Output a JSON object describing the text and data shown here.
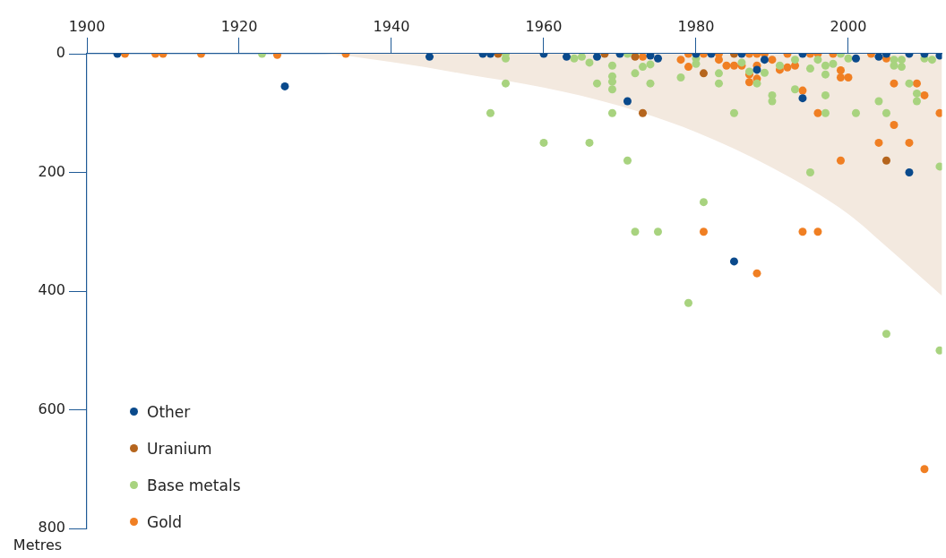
{
  "chart_data": {
    "type": "scatter",
    "ylabel": "Metres",
    "xlim": [
      1900,
      2012.3
    ],
    "ylim": [
      800,
      0
    ],
    "xticks": [
      1900,
      1920,
      1940,
      1960,
      1980,
      2000
    ],
    "yticks": [
      0,
      200,
      400,
      600,
      800
    ],
    "grid": false,
    "legend": "bottom left",
    "marker": "circle",
    "series": [
      {
        "type": "area",
        "marker": "none",
        "color": "#f3e9df",
        "x": [
          1900,
          1930,
          1940,
          1950,
          1960,
          1970,
          1980,
          1990,
          2000,
          2005,
          2012.3
        ],
        "values": [
          0,
          0,
          14,
          35,
          57,
          88,
          132,
          192,
          270,
          325,
          408
        ]
      },
      {
        "name": "Other",
        "color": "#0a4a8c",
        "x": [
          1904,
          1945,
          1926,
          1952,
          1953,
          1960,
          1963,
          1967,
          1970,
          1971,
          1974,
          1975,
          1980,
          1982,
          1986,
          1988,
          1989,
          1994,
          1994,
          2001,
          2004,
          2005,
          2008,
          2008,
          2010,
          2012,
          1985
        ],
        "values": [
          0,
          5,
          55,
          0,
          0,
          0,
          5,
          5,
          0,
          80,
          3,
          8,
          0,
          0,
          0,
          27,
          10,
          0,
          75,
          8,
          5,
          0,
          0,
          200,
          0,
          3,
          350
        ]
      },
      {
        "name": "Uranium",
        "color": "#b5651d",
        "x": [
          1954,
          1968,
          1972,
          1973,
          1981,
          1985,
          2005
        ],
        "values": [
          0,
          0,
          5,
          100,
          33,
          0,
          180
        ]
      },
      {
        "name": "Base metals",
        "color": "#a8d37f",
        "x": [
          1923,
          1955,
          1955,
          1955,
          1953,
          1960,
          1964,
          1965,
          1966,
          1966,
          1967,
          1969,
          1969,
          1969,
          1969,
          1969,
          1971,
          1972,
          1972,
          1973,
          1974,
          1974,
          1971,
          1972,
          1975,
          1978,
          1980,
          1980,
          1983,
          1983,
          1979,
          1981,
          1985,
          1986,
          1987,
          1988,
          1989,
          1990,
          1990,
          1991,
          1993,
          1993,
          1995,
          1995,
          1996,
          1997,
          1997,
          1997,
          1997,
          1998,
          1999,
          2000,
          2001,
          2004,
          2005,
          2005,
          2006,
          2006,
          2007,
          2007,
          2008,
          2009,
          2009,
          2010,
          2011,
          2012,
          2012
        ],
        "values": [
          0,
          0,
          8,
          50,
          100,
          150,
          8,
          5,
          15,
          150,
          50,
          20,
          38,
          47,
          60,
          100,
          0,
          0,
          33,
          22,
          18,
          50,
          180,
          300,
          300,
          40,
          8,
          17,
          33,
          50,
          420,
          250,
          100,
          15,
          30,
          50,
          32,
          70,
          80,
          20,
          60,
          10,
          200,
          25,
          10,
          20,
          70,
          100,
          35,
          17,
          0,
          8,
          100,
          80,
          100,
          472,
          20,
          10,
          10,
          22,
          50,
          67,
          80,
          8,
          10,
          190,
          500
        ]
      },
      {
        "name": "Gold",
        "color": "#f07f23",
        "x": [
          1905,
          1909,
          1910,
          1915,
          1925,
          1934,
          1973,
          1978,
          1979,
          1979,
          1981,
          1981,
          1983,
          1983,
          1984,
          1985,
          1986,
          1987,
          1987,
          1987,
          1988,
          1988,
          1988,
          1988,
          1989,
          1990,
          1991,
          1992,
          1992,
          1993,
          1994,
          1994,
          1995,
          1996,
          1996,
          1996,
          1998,
          1999,
          1999,
          2000,
          1999,
          2003,
          2004,
          2006,
          2006,
          2008,
          2009,
          2010,
          2012,
          2010,
          2005
        ],
        "values": [
          0,
          0,
          0,
          0,
          2,
          0,
          5,
          10,
          0,
          22,
          0,
          300,
          0,
          10,
          20,
          20,
          20,
          0,
          35,
          48,
          0,
          20,
          42,
          370,
          0,
          10,
          27,
          0,
          23,
          20,
          62,
          300,
          0,
          0,
          100,
          300,
          0,
          28,
          40,
          40,
          180,
          0,
          150,
          50,
          120,
          150,
          50,
          70,
          100,
          700,
          8
        ]
      }
    ]
  }
}
